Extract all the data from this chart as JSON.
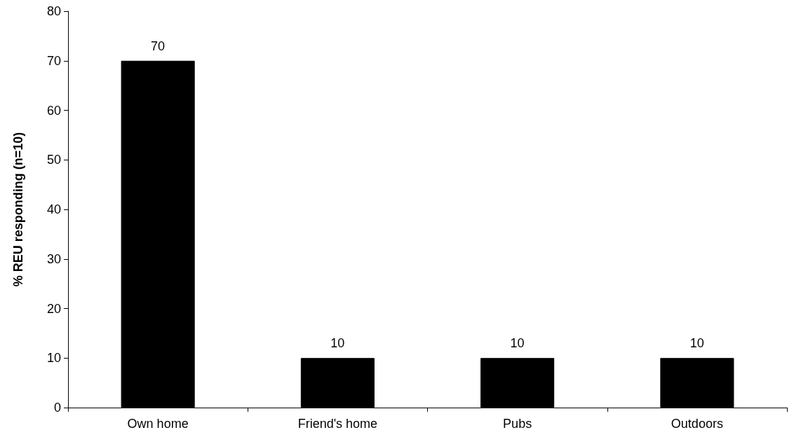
{
  "chart_data": {
    "type": "bar",
    "ylabel": "% REU responding (n=10)",
    "categories": [
      "Own home",
      "Friend's home",
      "Pubs",
      "Outdoors"
    ],
    "values": [
      70,
      10,
      10,
      10
    ],
    "color": "#000000",
    "ylim": [
      0,
      80
    ],
    "yticks": [
      0,
      10,
      20,
      30,
      40,
      50,
      60,
      70,
      80
    ],
    "grid": false,
    "data_labels": true
  }
}
